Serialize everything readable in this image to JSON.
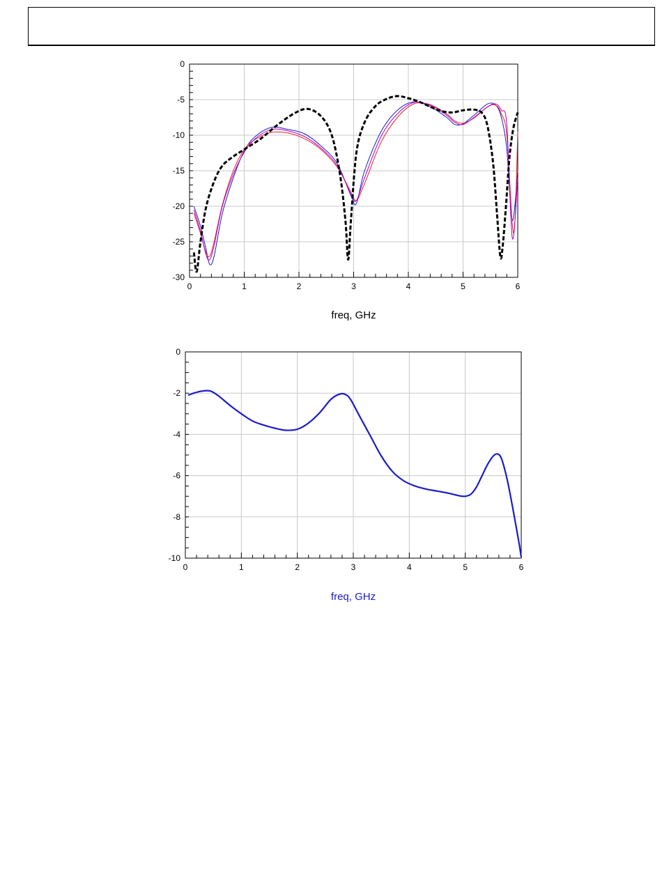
{
  "page": {
    "header_text": ""
  },
  "colors": {
    "grid": "#c8c8c8",
    "frame": "#000000",
    "blue": "#1a1acc",
    "red": "#e8202a",
    "magenta": "#b000c8",
    "black": "#000000",
    "xlabel_top": "#000000",
    "xlabel_bottom": "#1a1acc"
  },
  "chart_data": [
    {
      "type": "line",
      "title": "",
      "xlabel": "freq, GHz",
      "ylabel": "",
      "xlim": [
        0,
        6
      ],
      "ylim": [
        -30,
        0
      ],
      "xticks": [
        "0",
        "1",
        "2",
        "3",
        "4",
        "5",
        "6"
      ],
      "yticks": [
        "0",
        "-5",
        "-10",
        "-15",
        "-20",
        "-25",
        "-30"
      ],
      "grid": true,
      "series": [
        {
          "color": "#1a1acc",
          "style": "solid",
          "x": [
            0.08,
            0.2,
            0.3,
            0.37,
            0.45,
            0.6,
            0.8,
            1.0,
            1.2,
            1.5,
            1.8,
            2.1,
            2.4,
            2.7,
            2.95,
            3.05,
            3.2,
            3.5,
            3.8,
            4.1,
            4.4,
            4.7,
            4.85,
            5.0,
            5.2,
            5.45,
            5.6,
            5.7,
            5.8,
            5.9,
            6.0
          ],
          "y": [
            -20,
            -22.8,
            -26,
            -28.2,
            -27,
            -21,
            -16,
            -12.2,
            -10.2,
            -8.9,
            -9.2,
            -9.8,
            -11.5,
            -14,
            -18.5,
            -19.6,
            -15,
            -9.5,
            -6.5,
            -5.3,
            -6,
            -7.5,
            -8.5,
            -8.4,
            -7.2,
            -5.6,
            -5.8,
            -7.5,
            -12,
            -22,
            -15
          ]
        },
        {
          "color": "#e8202a",
          "style": "solid",
          "x": [
            0.08,
            0.2,
            0.3,
            0.37,
            0.45,
            0.6,
            0.8,
            1.0,
            1.2,
            1.5,
            1.8,
            2.1,
            2.4,
            2.7,
            2.95,
            3.05,
            3.2,
            3.5,
            3.8,
            4.1,
            4.4,
            4.7,
            4.85,
            5.0,
            5.2,
            5.45,
            5.6,
            5.7,
            5.8,
            5.9,
            5.95,
            6.0
          ],
          "y": [
            -21,
            -23.8,
            -26.5,
            -27,
            -25,
            -19.8,
            -15,
            -12,
            -10.6,
            -9.6,
            -9.7,
            -10.5,
            -12,
            -14.5,
            -18,
            -19.2,
            -16.8,
            -11,
            -7.5,
            -5.6,
            -5.7,
            -7,
            -8,
            -8.3,
            -7.6,
            -6,
            -5.8,
            -7,
            -10,
            -22.5,
            -22,
            -9.5
          ]
        },
        {
          "color": "#b000c8",
          "style": "solid",
          "x": [
            0.08,
            0.2,
            0.3,
            0.37,
            0.45,
            0.6,
            0.8,
            1.0,
            1.2,
            1.5,
            1.8,
            2.1,
            2.4,
            2.7,
            2.95,
            3.05,
            3.2,
            3.5,
            3.8,
            4.1,
            4.4,
            4.7,
            4.85,
            5.0,
            5.2,
            5.45,
            5.6,
            5.7,
            5.8,
            5.9,
            6.0
          ],
          "y": [
            -20.5,
            -23.5,
            -26.8,
            -27.5,
            -25.5,
            -20,
            -15.5,
            -12.4,
            -10.5,
            -9.2,
            -9.4,
            -10.2,
            -11.8,
            -14.3,
            -18.3,
            -19.2,
            -16,
            -10.2,
            -7,
            -5.4,
            -5.8,
            -7.2,
            -8.2,
            -8.5,
            -7.5,
            -6,
            -5.6,
            -6.5,
            -8.5,
            -24.5,
            -16
          ]
        },
        {
          "color": "#000000",
          "style": "dashed",
          "x": [
            0.08,
            0.13,
            0.2,
            0.3,
            0.45,
            0.6,
            0.8,
            1.0,
            1.3,
            1.6,
            1.9,
            2.15,
            2.4,
            2.6,
            2.75,
            2.85,
            2.9,
            2.95,
            3.05,
            3.2,
            3.4,
            3.6,
            3.8,
            4.0,
            4.2,
            4.4,
            4.6,
            4.8,
            5.0,
            5.2,
            5.35,
            5.45,
            5.55,
            5.62,
            5.68,
            5.72,
            5.78,
            5.85,
            5.92,
            6.0
          ],
          "y": [
            -26.5,
            -29.2,
            -25,
            -20.2,
            -16.5,
            -14.3,
            -13,
            -12,
            -10.5,
            -8.6,
            -7,
            -6.3,
            -7.3,
            -10,
            -15.5,
            -22,
            -27.5,
            -22,
            -12.5,
            -8.2,
            -5.9,
            -4.9,
            -4.5,
            -4.8,
            -5.3,
            -6,
            -6.6,
            -6.8,
            -6.5,
            -6.4,
            -6.9,
            -8.8,
            -14,
            -21,
            -27,
            -26,
            -20.5,
            -13,
            -9,
            -6.8
          ]
        }
      ]
    },
    {
      "type": "line",
      "title": "",
      "xlabel": "freq, GHz",
      "ylabel": "",
      "xlim": [
        0,
        6
      ],
      "ylim": [
        -10,
        0
      ],
      "xticks": [
        "0",
        "1",
        "2",
        "3",
        "4",
        "5",
        "6"
      ],
      "yticks": [
        "0",
        "-2",
        "-4",
        "-6",
        "-8",
        "-10"
      ],
      "grid": true,
      "series": [
        {
          "color": "#1a1acc",
          "style": "solid",
          "x": [
            0.05,
            0.15,
            0.3,
            0.45,
            0.6,
            0.8,
            1.0,
            1.2,
            1.4,
            1.6,
            1.8,
            2.0,
            2.2,
            2.4,
            2.6,
            2.75,
            2.85,
            2.95,
            3.1,
            3.3,
            3.5,
            3.7,
            3.9,
            4.1,
            4.3,
            4.5,
            4.7,
            4.9,
            5.0,
            5.1,
            5.2,
            5.3,
            5.4,
            5.5,
            5.58,
            5.65,
            5.75,
            5.85,
            5.95,
            6.0
          ],
          "y": [
            -2.1,
            -2.0,
            -1.9,
            -1.9,
            -2.15,
            -2.6,
            -3.0,
            -3.35,
            -3.55,
            -3.7,
            -3.8,
            -3.75,
            -3.45,
            -2.95,
            -2.3,
            -2.05,
            -2.05,
            -2.3,
            -3.05,
            -4.05,
            -5.05,
            -5.8,
            -6.25,
            -6.5,
            -6.65,
            -6.75,
            -6.85,
            -6.98,
            -7.0,
            -6.9,
            -6.55,
            -6.0,
            -5.45,
            -5.05,
            -4.95,
            -5.2,
            -6.2,
            -7.6,
            -9.1,
            -9.95
          ]
        }
      ]
    }
  ]
}
